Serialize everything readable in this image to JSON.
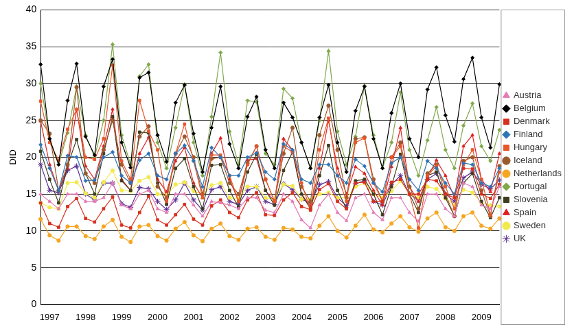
{
  "chart_data": {
    "type": "line",
    "y_label": "DID",
    "categories": [
      null,
      "1997",
      null,
      null,
      null,
      "1998",
      null,
      null,
      null,
      "1999",
      null,
      null,
      null,
      "2000",
      null,
      null,
      null,
      "2001",
      null,
      null,
      null,
      "2002",
      null,
      null,
      null,
      "2003",
      null,
      null,
      null,
      "2004",
      null,
      null,
      null,
      "2005",
      null,
      null,
      null,
      "2006",
      null,
      null,
      null,
      "2007",
      null,
      null,
      null,
      "2008",
      null,
      null,
      null,
      "2009",
      null,
      null
    ],
    "ylim": [
      0,
      40
    ],
    "yticks": [
      0,
      5,
      10,
      15,
      20,
      25,
      30,
      35,
      40
    ],
    "grid": true,
    "legend": "right",
    "series": [
      {
        "name": "Austria",
        "color": "#e57bb5",
        "marker": "triangle",
        "values": [
          15,
          14,
          13,
          15,
          15,
          14,
          14,
          14.5,
          16.5,
          13.5,
          13,
          15,
          15.5,
          13,
          12.5,
          15,
          15,
          13.5,
          12,
          14,
          13.8,
          13.5,
          13,
          14.5,
          14.5,
          12.8,
          12.5,
          15,
          14,
          11.5,
          10.4,
          13.5,
          15,
          12.5,
          11.4,
          14.5,
          15,
          12.5,
          11.5,
          14.5,
          14.5,
          12.5,
          11.3,
          15,
          15,
          13,
          12,
          16.5,
          16,
          13.5,
          13,
          16
        ]
      },
      {
        "name": "Belgium",
        "color": "#000000",
        "marker": "diamond",
        "values": [
          32.6,
          22.5,
          19,
          27.7,
          32.7,
          22.8,
          20.3,
          29.6,
          33.3,
          22,
          18.6,
          30.8,
          31.5,
          23,
          19.4,
          27.4,
          29.8,
          23.2,
          18,
          24,
          29.6,
          21.8,
          18.5,
          25.5,
          28.2,
          21,
          18.5,
          27.4,
          25.4,
          22,
          18.5,
          25.4,
          29.8,
          22,
          18,
          26.3,
          29.6,
          22.5,
          18.5,
          26,
          30,
          22.5,
          20,
          29.2,
          32.2,
          25.7,
          22.1,
          30.6,
          33.5,
          25.4,
          21.3,
          29.9
        ]
      },
      {
        "name": "Denmark",
        "color": "#d7301f",
        "marker": "square",
        "values": [
          13.8,
          11,
          10.5,
          13.3,
          14.4,
          11.7,
          11.2,
          13,
          14.6,
          10.8,
          10.4,
          12.5,
          14.7,
          11.5,
          10.8,
          12.2,
          13.6,
          11.6,
          10.8,
          13.4,
          14.2,
          12.5,
          11.8,
          14.2,
          15.2,
          12.2,
          12.1,
          14.2,
          15.2,
          13.3,
          12.9,
          15.6,
          16.4,
          14,
          13,
          16.5,
          16.6,
          14,
          14,
          16.6,
          17,
          15,
          15,
          17,
          16.8,
          15,
          14.5,
          18.5,
          18.4,
          15,
          14.4,
          16.3
        ]
      },
      {
        "name": "Finland",
        "color": "#2e75b6",
        "marker": "diamond",
        "values": [
          21.7,
          18.5,
          15.5,
          20.2,
          20,
          16.8,
          16.9,
          20,
          20.7,
          17.5,
          16.5,
          19.6,
          20.5,
          17.5,
          17,
          20.5,
          21.6,
          19.5,
          16,
          21.3,
          20,
          17.5,
          17.5,
          20,
          20.6,
          18,
          17,
          21.8,
          21,
          17,
          16.5,
          19,
          19,
          17.5,
          16.5,
          19.7,
          18.8,
          16.5,
          15.3,
          19.2,
          20,
          17,
          15.5,
          19.5,
          18.5,
          16.5,
          15,
          19.2,
          19,
          16.5,
          16,
          18.5
        ]
      },
      {
        "name": "Hungary",
        "color": "#e8562a",
        "marker": "square",
        "values": [
          27.6,
          22,
          19.6,
          23.8,
          26.5,
          20,
          19.7,
          22.5,
          32.5,
          19.5,
          17,
          27.7,
          23.5,
          21,
          14,
          20.5,
          24.5,
          19.5,
          14.5,
          20.3,
          20.3,
          17.5,
          14,
          19,
          21.5,
          17,
          14,
          21.5,
          20.7,
          16.5,
          12.8,
          21,
          25.3,
          17.5,
          14,
          22,
          22.6,
          16.5,
          14,
          20,
          21.5,
          15,
          10.4,
          17.5,
          18.8,
          16,
          13,
          19,
          21,
          17,
          12.2,
          18
        ]
      },
      {
        "name": "Iceland",
        "color": "#9b5a2e",
        "marker": "circle",
        "values": [
          25,
          23.2,
          15.5,
          19,
          29.5,
          17.8,
          16.5,
          21,
          25,
          19,
          16.5,
          22.8,
          24.2,
          16,
          14.5,
          20.5,
          22.8,
          20,
          15,
          19.8,
          20,
          16.5,
          15,
          19.2,
          21.5,
          17,
          14,
          20.5,
          24,
          16,
          14,
          23,
          27,
          21,
          14.5,
          22.5,
          22.7,
          17,
          14,
          20,
          22,
          16,
          13,
          17.8,
          19,
          15,
          12,
          19.5,
          20,
          15.5,
          12,
          18.8
        ]
      },
      {
        "name": "Netherlands",
        "color": "#f5a623",
        "marker": "circle",
        "values": [
          11.6,
          9.4,
          8.7,
          10.6,
          10.6,
          9.3,
          8.9,
          10.6,
          11.5,
          9.2,
          8.5,
          10.6,
          10.8,
          9.3,
          8.7,
          10.3,
          11.2,
          9.4,
          8.6,
          10.3,
          11,
          9.3,
          8.8,
          10.3,
          10.5,
          9.2,
          8.8,
          10.4,
          10.2,
          9.2,
          9,
          10.7,
          12,
          10,
          9.1,
          10.7,
          12.2,
          10.2,
          9.8,
          11,
          12,
          10.5,
          9.9,
          11.7,
          12.5,
          10.5,
          10,
          12,
          12.5,
          10.7,
          10.3,
          11.7
        ]
      },
      {
        "name": "Portugal",
        "color": "#7fa84a",
        "marker": "diamond",
        "values": [
          30,
          22.5,
          19,
          23.3,
          29.6,
          23,
          20,
          25,
          35.3,
          23,
          19,
          31,
          32.6,
          22,
          18.5,
          24,
          29.9,
          22,
          17.5,
          25.5,
          34.2,
          23.5,
          19,
          27.7,
          27.5,
          20.5,
          19,
          29.3,
          28,
          22,
          18.5,
          25,
          34.4,
          23.5,
          19,
          22.8,
          29.7,
          23,
          18.5,
          22,
          28.8,
          21,
          17.5,
          22.3,
          26.8,
          21,
          18.5,
          24.3,
          27.3,
          21.5,
          19.5,
          23.7
        ]
      },
      {
        "name": "Slovenia",
        "color": "#3d3d1f",
        "marker": "square",
        "values": [
          20.8,
          17,
          13.8,
          18.9,
          22.4,
          17.8,
          15,
          20.5,
          25.5,
          16.8,
          15.5,
          23.4,
          23.3,
          16.5,
          13.6,
          18.5,
          19.8,
          16,
          13,
          18.9,
          19,
          15.5,
          13.2,
          18,
          20.4,
          15.5,
          13.5,
          18.2,
          20.7,
          15,
          13,
          17.5,
          21.6,
          15.5,
          13,
          16.8,
          17,
          15,
          12.2,
          16,
          20.4,
          15,
          12.5,
          17.5,
          18,
          14.5,
          12,
          16.5,
          17.8,
          14,
          11.8,
          14.5
        ]
      },
      {
        "name": "Spain",
        "color": "#e02020",
        "marker": "triangle",
        "values": [
          24.9,
          19,
          15.5,
          18.5,
          26.5,
          18.8,
          17,
          21.5,
          26.5,
          17,
          15.5,
          20.5,
          22.7,
          17,
          15.3,
          19.5,
          21.3,
          16.5,
          14.5,
          20.5,
          22.6,
          17,
          14,
          19.6,
          19.8,
          15.5,
          14,
          22.5,
          21,
          15,
          13.3,
          18.5,
          25,
          18.5,
          15,
          18.7,
          17.8,
          15.5,
          13.5,
          18.7,
          24,
          16,
          14,
          17.3,
          19.6,
          17.5,
          14.5,
          21.5,
          23,
          17,
          15.3,
          20.5
        ]
      },
      {
        "name": "Sweden",
        "color": "#f2e94e",
        "marker": "circle",
        "values": [
          13.8,
          13.2,
          13,
          16.5,
          16.6,
          15.1,
          14.5,
          16.6,
          18.2,
          15.5,
          15.4,
          16.8,
          17.3,
          15,
          14.8,
          16.3,
          16.6,
          15.4,
          15,
          16.2,
          16.5,
          14.5,
          14.4,
          16,
          16,
          14.5,
          14.3,
          16.3,
          16.1,
          14.3,
          14.2,
          15,
          15.2,
          14.5,
          14.5,
          16,
          16.5,
          15,
          14.5,
          15.4,
          16.8,
          15,
          14.5,
          16,
          15.7,
          14.4,
          13.5,
          15.6,
          15.2,
          13.8,
          13.5,
          13.3
        ]
      },
      {
        "name": "UK",
        "color": "#5a2d91",
        "marker": "star",
        "values": [
          19,
          15.5,
          15.2,
          18.2,
          18.8,
          15,
          14.2,
          16.5,
          16.5,
          13.7,
          13.2,
          15.9,
          15.7,
          14,
          12.9,
          14.2,
          16.5,
          14.2,
          12.8,
          15.6,
          16,
          14,
          13.6,
          15.5,
          16,
          14,
          13.6,
          16.4,
          15.6,
          14.3,
          13.8,
          16.3,
          16.7,
          14.5,
          13.4,
          16.4,
          16.8,
          14,
          13.5,
          16.3,
          17.5,
          15,
          14.2,
          17,
          17.8,
          15,
          14,
          17.2,
          18,
          16.3,
          15.7,
          16.9
        ]
      }
    ]
  }
}
